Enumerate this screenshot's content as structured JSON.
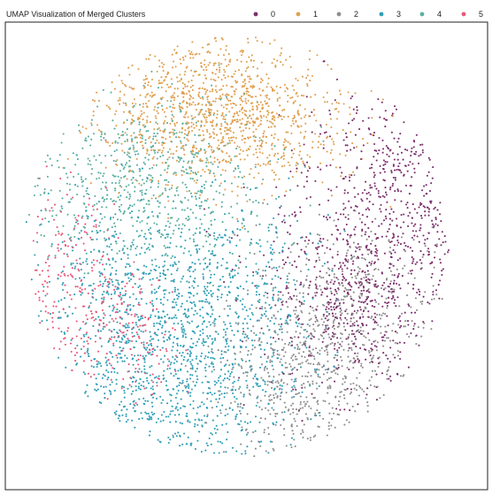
{
  "chart_data": {
    "type": "scatter",
    "title": "UMAP Visualization of Merged Clusters",
    "xlabel": "",
    "ylabel": "",
    "grid": false,
    "ticks": false,
    "legend": {
      "placement": "top-right",
      "orientation": "horizontal",
      "entries": [
        "0",
        "1",
        "2",
        "3",
        "4",
        "5"
      ]
    },
    "xlim": [
      0,
      100
    ],
    "ylim": [
      0,
      100
    ],
    "series": [
      {
        "name": "0",
        "color": "#7b2f6b",
        "count": 1000,
        "centers": [
          [
            84,
            60
          ],
          [
            76,
            38
          ],
          [
            68,
            44
          ],
          [
            79,
            70
          ]
        ],
        "spread": [
          9,
          10
        ]
      },
      {
        "name": "1",
        "color": "#e0a050",
        "count": 1200,
        "centers": [
          [
            45,
            83
          ],
          [
            34,
            79
          ],
          [
            56,
            79
          ],
          [
            44,
            74
          ],
          [
            40,
            89
          ]
        ],
        "spread": [
          10,
          6
        ]
      },
      {
        "name": "2",
        "color": "#8f8f8f",
        "count": 900,
        "centers": [
          [
            60,
            18
          ],
          [
            70,
            30
          ],
          [
            58,
            26
          ],
          [
            74,
            44
          ],
          [
            64,
            38
          ]
        ],
        "spread": [
          9,
          8
        ]
      },
      {
        "name": "3",
        "color": "#2f9fb8",
        "count": 1600,
        "centers": [
          [
            34,
            38
          ],
          [
            27,
            23
          ],
          [
            47,
            30
          ],
          [
            22,
            45
          ],
          [
            38,
            16
          ],
          [
            48,
            46
          ]
        ],
        "spread": [
          10,
          9
        ]
      },
      {
        "name": "4",
        "color": "#5aafa0",
        "count": 700,
        "centers": [
          [
            28,
            63
          ],
          [
            40,
            62
          ],
          [
            18,
            67
          ],
          [
            34,
            71
          ]
        ],
        "spread": [
          9,
          8
        ]
      },
      {
        "name": "5",
        "color": "#e8577a",
        "count": 360,
        "centers": [
          [
            14,
            44
          ],
          [
            22,
            38
          ],
          [
            14,
            55
          ],
          [
            28,
            30
          ],
          [
            11,
            35
          ]
        ],
        "spread": [
          5,
          7
        ]
      }
    ]
  }
}
